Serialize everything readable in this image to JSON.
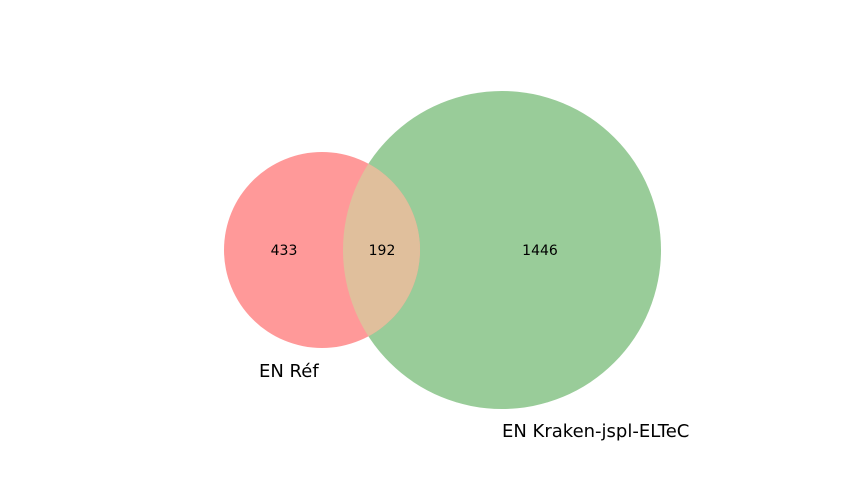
{
  "venn": {
    "sets": [
      {
        "name": "EN Réf",
        "color": "#ff9999",
        "size": 625
      },
      {
        "name": "EN Kraken-jspl-ELTeC",
        "color": "#99cc99",
        "size": 1638
      }
    ],
    "overlap_color": "#e0bf9c",
    "regions": {
      "left_only": "433",
      "intersection": "192",
      "right_only": "1446"
    }
  }
}
